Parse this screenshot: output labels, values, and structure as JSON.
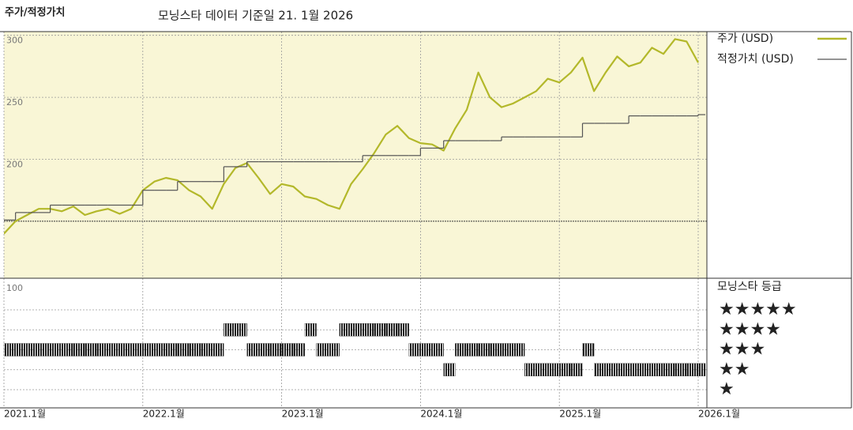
{
  "chart_data": {
    "type": "line",
    "title": "주가/적정가치",
    "subtitle": "모닝스타 데이터 기준일 21. 1월 2026",
    "x": [
      "2021-01",
      "2021-02",
      "2021-03",
      "2021-04",
      "2021-05",
      "2021-06",
      "2021-07",
      "2021-08",
      "2021-09",
      "2021-10",
      "2021-11",
      "2021-12",
      "2022-01",
      "2022-02",
      "2022-03",
      "2022-04",
      "2022-05",
      "2022-06",
      "2022-07",
      "2022-08",
      "2022-09",
      "2022-10",
      "2022-11",
      "2022-12",
      "2023-01",
      "2023-02",
      "2023-03",
      "2023-04",
      "2023-05",
      "2023-06",
      "2023-07",
      "2023-08",
      "2023-09",
      "2023-10",
      "2023-11",
      "2023-12",
      "2024-01",
      "2024-02",
      "2024-03",
      "2024-04",
      "2024-05",
      "2024-06",
      "2024-07",
      "2024-08",
      "2024-09",
      "2024-10",
      "2024-11",
      "2024-12",
      "2025-01",
      "2025-02",
      "2025-03",
      "2025-04",
      "2025-05",
      "2025-06",
      "2025-07",
      "2025-08",
      "2025-09",
      "2025-10",
      "2025-11",
      "2025-12",
      "2026-01"
    ],
    "xlim": [
      "2021-01",
      "2026-01"
    ],
    "xticks": [
      {
        "value": "2021-01",
        "label": "2021.1월"
      },
      {
        "value": "2022-01",
        "label": "2022.1월"
      },
      {
        "value": "2023-01",
        "label": "2023.1월"
      },
      {
        "value": "2024-01",
        "label": "2024.1월"
      },
      {
        "value": "2025-01",
        "label": "2025.1월"
      },
      {
        "value": "2026-01",
        "label": "2026.1월"
      }
    ],
    "ylim": [
      104,
      303
    ],
    "yticks": [
      200,
      250,
      300
    ],
    "reference_line": 150,
    "series": [
      {
        "name": "주가 (USD)",
        "color": "#b3b82a",
        "values": [
          140,
          150,
          155,
          160,
          160,
          158,
          162,
          155,
          158,
          160,
          156,
          160,
          175,
          182,
          185,
          183,
          175,
          170,
          160,
          180,
          193,
          197,
          185,
          172,
          180,
          178,
          170,
          168,
          163,
          160,
          180,
          192,
          205,
          220,
          227,
          217,
          213,
          212,
          207,
          225,
          240,
          270,
          250,
          242,
          245,
          250,
          255,
          265,
          262,
          270,
          282,
          255,
          270,
          283,
          275,
          278,
          290,
          285,
          297,
          295,
          278
        ]
      },
      {
        "name": "적정가치 (USD)",
        "color": "#555555",
        "step": true,
        "values": [
          151,
          157,
          157,
          157,
          163,
          163,
          163,
          163,
          163,
          163,
          163,
          163,
          175,
          175,
          175,
          182,
          182,
          182,
          182,
          194,
          194,
          198,
          198,
          198,
          198,
          198,
          198,
          198,
          198,
          198,
          198,
          203,
          203,
          203,
          203,
          203,
          209,
          209,
          215,
          215,
          215,
          215,
          215,
          218,
          218,
          218,
          218,
          218,
          218,
          218,
          229,
          229,
          229,
          229,
          235,
          235,
          235,
          235,
          235,
          235,
          236
        ]
      }
    ],
    "rating_title": "모닝스타 등급",
    "rating_axis_label": "100",
    "rating_labels": [
      "★",
      "★★",
      "★★★",
      "★★★★",
      "★★★★★"
    ],
    "rating_levels": [
      1,
      2,
      3,
      4,
      5
    ],
    "rating_color": "#222222",
    "ratings": [
      3,
      3,
      3,
      3,
      3,
      3,
      3,
      3,
      3,
      3,
      3,
      3,
      3,
      3,
      3,
      3,
      3,
      3,
      3,
      4,
      4,
      3,
      3,
      3,
      3,
      3,
      4,
      3,
      3,
      4,
      4,
      4,
      4,
      4,
      4,
      3,
      3,
      3,
      2,
      3,
      3,
      3,
      3,
      3,
      3,
      2,
      2,
      2,
      2,
      2,
      3,
      2,
      2,
      2,
      2,
      2,
      2,
      2,
      2,
      2,
      2
    ],
    "grid": true
  }
}
